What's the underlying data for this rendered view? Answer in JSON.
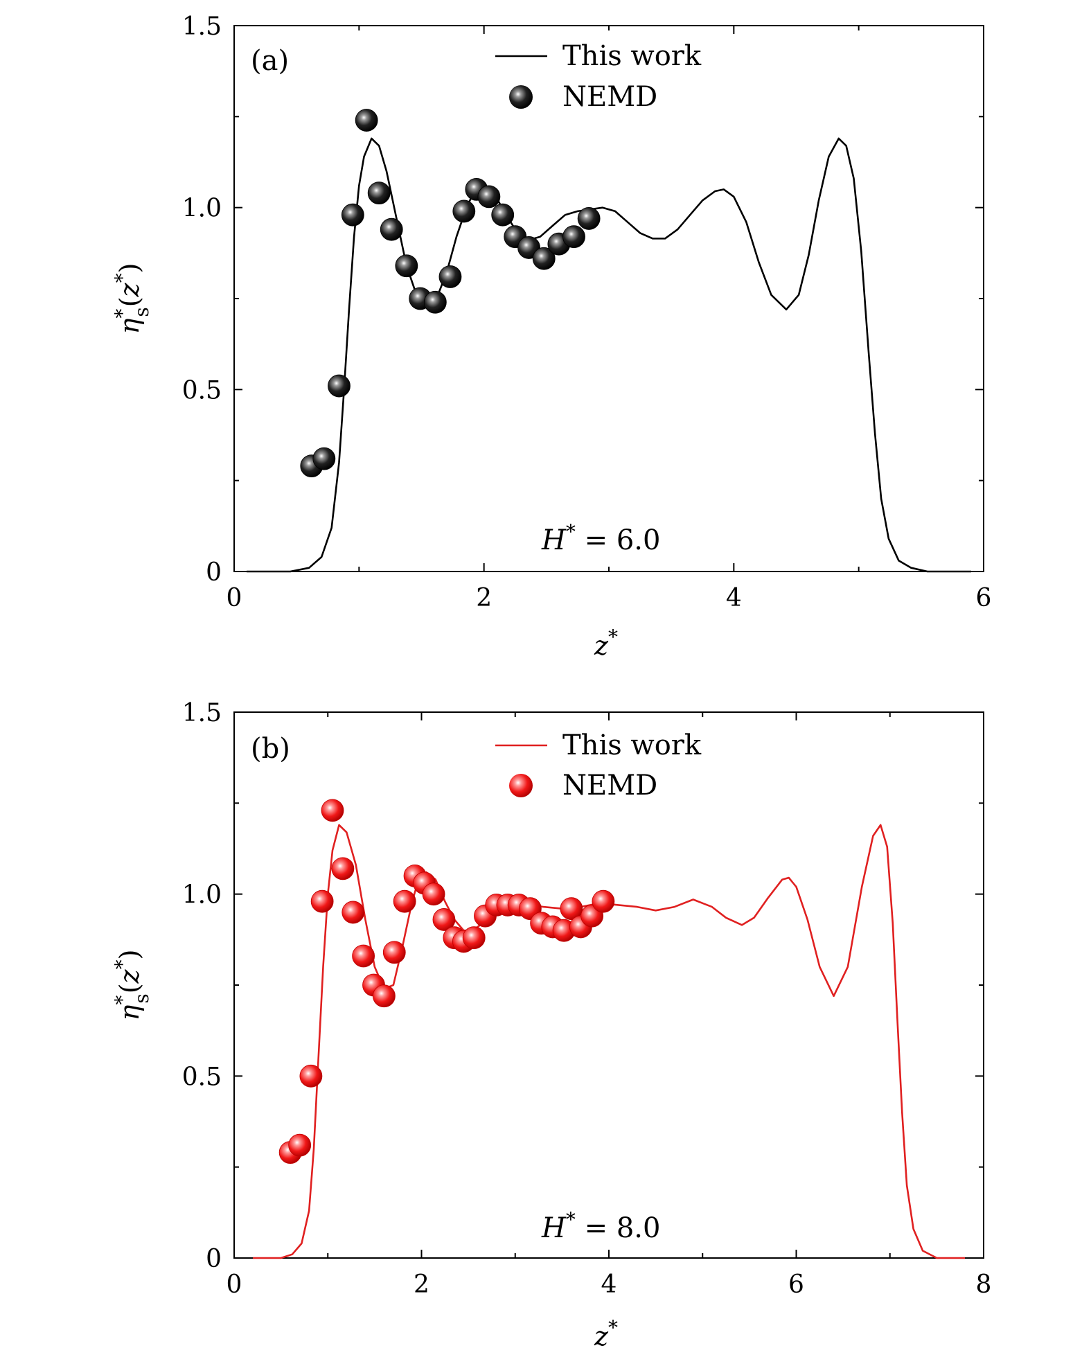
{
  "chart_data": [
    {
      "type": "line",
      "panel_label": "(a)",
      "annotation": "H* = 6.0",
      "annotation_parts": {
        "symbol": "H",
        "sup": "*",
        "rest": " = 6.0"
      },
      "xlabel": "z*",
      "xlabel_parts": {
        "symbol": "z",
        "sup": "*"
      },
      "ylabel": "ηs*(z*)",
      "ylabel_parts": {
        "eta": "η",
        "sup": "*",
        "sub": "s",
        "open": "(",
        "z": "z",
        "zsup": "*",
        "close": ")"
      },
      "xlim": [
        0,
        6
      ],
      "ylim": [
        0,
        1.5
      ],
      "xticks": [
        0,
        2,
        4,
        6
      ],
      "xtick_labels": [
        "0",
        "2",
        "4",
        "6"
      ],
      "yticks": [
        0,
        0.5,
        1.0,
        1.5
      ],
      "ytick_labels": [
        "0",
        "0.5",
        "1.0",
        "1.5"
      ],
      "legend": {
        "placement": "top-center",
        "entries": [
          "This work",
          "NEMD"
        ]
      },
      "color": "#000000",
      "series": [
        {
          "name": "This work",
          "style": "line",
          "x": [
            0.1,
            0.45,
            0.6,
            0.7,
            0.78,
            0.84,
            0.88,
            0.92,
            0.96,
            1.0,
            1.04,
            1.1,
            1.16,
            1.22,
            1.3,
            1.38,
            1.46,
            1.55,
            1.62,
            1.7,
            1.78,
            1.86,
            1.93,
            2.0,
            2.08,
            2.16,
            2.25,
            2.35,
            2.45,
            2.55,
            2.65,
            2.75,
            2.85,
            2.95,
            3.05,
            3.15,
            3.25,
            3.35,
            3.45,
            3.55,
            3.65,
            3.75,
            3.85,
            3.92,
            4.0,
            4.1,
            4.2,
            4.3,
            4.42,
            4.52,
            4.6,
            4.68,
            4.76,
            4.84,
            4.9,
            4.96,
            5.02,
            5.08,
            5.13,
            5.18,
            5.24,
            5.32,
            5.42,
            5.55,
            5.9
          ],
          "y": [
            0.0,
            0.0,
            0.01,
            0.04,
            0.12,
            0.3,
            0.5,
            0.72,
            0.92,
            1.06,
            1.14,
            1.19,
            1.17,
            1.1,
            0.97,
            0.84,
            0.76,
            0.73,
            0.75,
            0.82,
            0.92,
            1.0,
            1.05,
            1.06,
            1.04,
            0.99,
            0.94,
            0.91,
            0.92,
            0.95,
            0.98,
            0.99,
            0.995,
            1.0,
            0.99,
            0.96,
            0.93,
            0.915,
            0.915,
            0.94,
            0.98,
            1.02,
            1.045,
            1.05,
            1.03,
            0.96,
            0.85,
            0.76,
            0.72,
            0.76,
            0.87,
            1.02,
            1.14,
            1.19,
            1.17,
            1.08,
            0.88,
            0.6,
            0.38,
            0.2,
            0.09,
            0.03,
            0.01,
            0.0,
            0.0
          ]
        },
        {
          "name": "NEMD",
          "style": "markers",
          "x": [
            0.62,
            0.72,
            0.84,
            0.95,
            1.06,
            1.16,
            1.26,
            1.38,
            1.49,
            1.61,
            1.73,
            1.84,
            1.94,
            2.04,
            2.15,
            2.25,
            2.36,
            2.48,
            2.6,
            2.72,
            2.84
          ],
          "y": [
            0.29,
            0.31,
            0.51,
            0.98,
            1.24,
            1.04,
            0.94,
            0.84,
            0.75,
            0.74,
            0.81,
            0.99,
            1.05,
            1.03,
            0.98,
            0.92,
            0.89,
            0.86,
            0.9,
            0.92,
            0.97
          ]
        }
      ]
    },
    {
      "type": "line",
      "panel_label": "(b)",
      "annotation": "H* = 8.0",
      "annotation_parts": {
        "symbol": "H",
        "sup": "*",
        "rest": " = 8.0"
      },
      "xlabel": "z*",
      "xlabel_parts": {
        "symbol": "z",
        "sup": "*"
      },
      "ylabel": "ηs*(z*)",
      "ylabel_parts": {
        "eta": "η",
        "sup": "*",
        "sub": "s",
        "open": "(",
        "z": "z",
        "zsup": "*",
        "close": ")"
      },
      "xlim": [
        0,
        8
      ],
      "ylim": [
        0,
        1.5
      ],
      "xticks": [
        0,
        2,
        4,
        6,
        8
      ],
      "xtick_labels": [
        "0",
        "2",
        "4",
        "6",
        "8"
      ],
      "yticks": [
        0,
        0.5,
        1.0,
        1.5
      ],
      "ytick_labels": [
        "0",
        "0.5",
        "1.0",
        "1.5"
      ],
      "legend": {
        "placement": "top-center",
        "entries": [
          "This work",
          "NEMD"
        ]
      },
      "color": "#e02020",
      "series": [
        {
          "name": "This work",
          "style": "line",
          "x": [
            0.2,
            0.5,
            0.62,
            0.72,
            0.8,
            0.85,
            0.9,
            0.95,
            1.0,
            1.05,
            1.12,
            1.2,
            1.3,
            1.4,
            1.5,
            1.6,
            1.7,
            1.8,
            1.9,
            1.97,
            2.05,
            2.15,
            2.25,
            2.35,
            2.45,
            2.55,
            2.65,
            2.75,
            2.85,
            2.95,
            3.1,
            3.3,
            3.5,
            3.7,
            3.9,
            4.1,
            4.3,
            4.5,
            4.7,
            4.9,
            5.1,
            5.25,
            5.42,
            5.55,
            5.7,
            5.85,
            5.92,
            6.0,
            6.12,
            6.25,
            6.4,
            6.55,
            6.7,
            6.82,
            6.9,
            6.97,
            7.03,
            7.08,
            7.13,
            7.18,
            7.25,
            7.35,
            7.5,
            7.8
          ],
          "y": [
            0.0,
            0.0,
            0.01,
            0.04,
            0.13,
            0.3,
            0.55,
            0.8,
            1.0,
            1.12,
            1.19,
            1.17,
            1.08,
            0.93,
            0.8,
            0.74,
            0.75,
            0.86,
            0.98,
            1.04,
            1.06,
            1.04,
            0.98,
            0.93,
            0.9,
            0.9,
            0.92,
            0.95,
            0.97,
            0.98,
            0.975,
            0.965,
            0.96,
            0.965,
            0.975,
            0.97,
            0.965,
            0.955,
            0.965,
            0.985,
            0.965,
            0.935,
            0.915,
            0.935,
            0.99,
            1.04,
            1.045,
            1.02,
            0.93,
            0.8,
            0.72,
            0.8,
            1.02,
            1.16,
            1.19,
            1.13,
            0.92,
            0.65,
            0.4,
            0.2,
            0.08,
            0.02,
            0.0,
            0.0
          ]
        },
        {
          "name": "NEMD",
          "style": "markers",
          "x": [
            0.6,
            0.7,
            0.82,
            0.94,
            1.05,
            1.16,
            1.27,
            1.38,
            1.49,
            1.6,
            1.71,
            1.82,
            1.93,
            2.03,
            2.13,
            2.24,
            2.35,
            2.45,
            2.56,
            2.68,
            2.8,
            2.92,
            3.04,
            3.16,
            3.28,
            3.4,
            3.52,
            3.6,
            3.7,
            3.82,
            3.94
          ],
          "y": [
            0.29,
            0.31,
            0.5,
            0.98,
            1.23,
            1.07,
            0.95,
            0.83,
            0.75,
            0.72,
            0.84,
            0.98,
            1.05,
            1.03,
            1.0,
            0.93,
            0.88,
            0.87,
            0.88,
            0.94,
            0.97,
            0.97,
            0.97,
            0.96,
            0.92,
            0.91,
            0.9,
            0.96,
            0.91,
            0.94,
            0.98
          ]
        }
      ]
    }
  ]
}
